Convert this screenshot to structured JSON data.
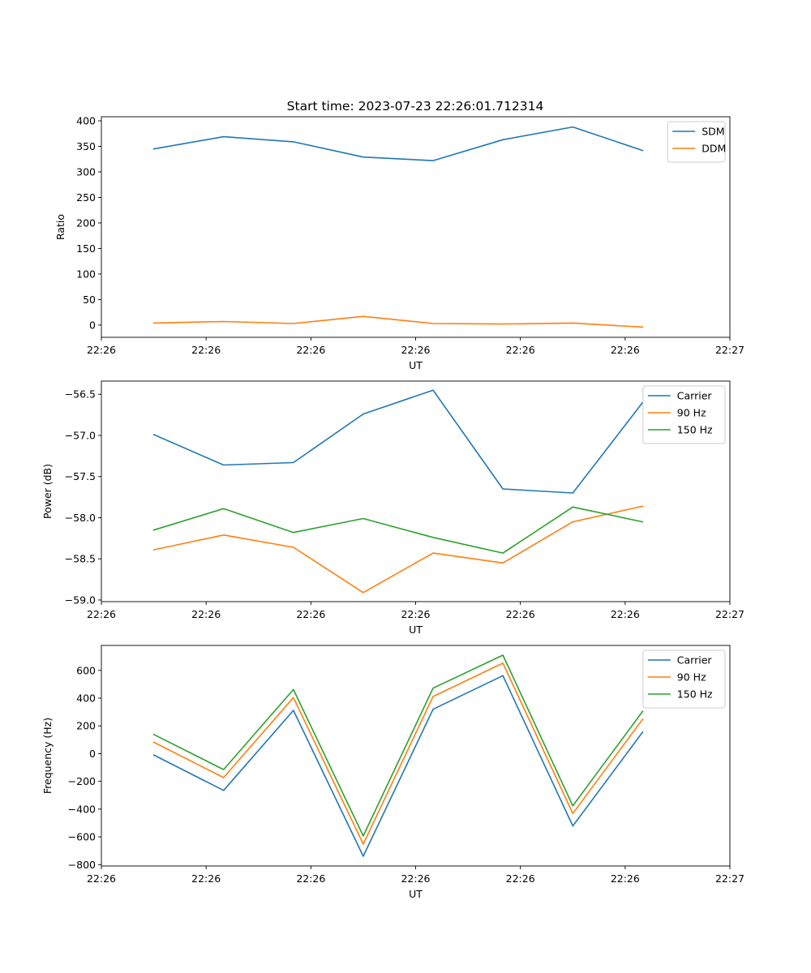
{
  "figure": {
    "title": "Start time: 2023-07-23 22:26:01.712314"
  },
  "chart_data": [
    {
      "type": "line",
      "xlabel": "UT",
      "ylabel": "Ratio",
      "x": [
        1,
        2,
        3,
        4,
        5,
        6,
        7,
        8
      ],
      "xlim": [
        0.25,
        9.25
      ],
      "x_ticks": [
        {
          "v": 0.25,
          "label": "22:26"
        },
        {
          "v": 1.75,
          "label": "22:26"
        },
        {
          "v": 3.25,
          "label": "22:26"
        },
        {
          "v": 4.75,
          "label": "22:26"
        },
        {
          "v": 6.25,
          "label": "22:26"
        },
        {
          "v": 7.75,
          "label": "22:26"
        },
        {
          "v": 9.25,
          "label": "22:27"
        }
      ],
      "ylim": [
        -24,
        408
      ],
      "y_ticks": [
        {
          "v": 0,
          "label": "0"
        },
        {
          "v": 50,
          "label": "50"
        },
        {
          "v": 100,
          "label": "100"
        },
        {
          "v": 150,
          "label": "150"
        },
        {
          "v": 200,
          "label": "200"
        },
        {
          "v": 250,
          "label": "250"
        },
        {
          "v": 300,
          "label": "300"
        },
        {
          "v": 350,
          "label": "350"
        },
        {
          "v": 400,
          "label": "400"
        }
      ],
      "series": [
        {
          "name": "SDM",
          "color": "#1f77b4",
          "values": [
            345,
            369,
            359,
            329,
            322,
            363,
            388,
            342
          ]
        },
        {
          "name": "DDM",
          "color": "#ff7f0e",
          "values": [
            4,
            7,
            3,
            17,
            3,
            2,
            4,
            -4
          ]
        }
      ],
      "legend": "top-right"
    },
    {
      "type": "line",
      "xlabel": "UT",
      "ylabel": "Power (dB)",
      "x": [
        1,
        2,
        3,
        4,
        5,
        6,
        7,
        8
      ],
      "xlim": [
        0.25,
        9.25
      ],
      "x_ticks": [
        {
          "v": 0.25,
          "label": "22:26"
        },
        {
          "v": 1.75,
          "label": "22:26"
        },
        {
          "v": 3.25,
          "label": "22:26"
        },
        {
          "v": 4.75,
          "label": "22:26"
        },
        {
          "v": 6.25,
          "label": "22:26"
        },
        {
          "v": 7.75,
          "label": "22:26"
        },
        {
          "v": 9.25,
          "label": "22:27"
        }
      ],
      "ylim": [
        -59.02,
        -56.34
      ],
      "y_ticks": [
        {
          "v": -59.0,
          "label": "−59.0"
        },
        {
          "v": -58.5,
          "label": "−58.5"
        },
        {
          "v": -58.0,
          "label": "−58.0"
        },
        {
          "v": -57.5,
          "label": "−57.5"
        },
        {
          "v": -57.0,
          "label": "−57.0"
        },
        {
          "v": -56.5,
          "label": "−56.5"
        }
      ],
      "series": [
        {
          "name": "Carrier",
          "color": "#1f77b4",
          "values": [
            -56.99,
            -57.36,
            -57.33,
            -56.74,
            -56.45,
            -57.65,
            -57.7,
            -56.6
          ]
        },
        {
          "name": "90 Hz",
          "color": "#ff7f0e",
          "values": [
            -58.39,
            -58.21,
            -58.36,
            -58.91,
            -58.43,
            -58.55,
            -58.05,
            -57.86
          ]
        },
        {
          "name": "150 Hz",
          "color": "#2ca02c",
          "values": [
            -58.15,
            -57.89,
            -58.18,
            -58.01,
            -58.24,
            -58.43,
            -57.87,
            -58.05
          ]
        }
      ],
      "legend": "top-right"
    },
    {
      "type": "line",
      "xlabel": "UT",
      "ylabel": "Frequency (Hz)",
      "x": [
        1,
        2,
        3,
        4,
        5,
        6,
        7,
        8
      ],
      "xlim": [
        0.25,
        9.25
      ],
      "x_ticks": [
        {
          "v": 0.25,
          "label": "22:26"
        },
        {
          "v": 1.75,
          "label": "22:26"
        },
        {
          "v": 3.25,
          "label": "22:26"
        },
        {
          "v": 4.75,
          "label": "22:26"
        },
        {
          "v": 6.25,
          "label": "22:26"
        },
        {
          "v": 7.75,
          "label": "22:26"
        },
        {
          "v": 9.25,
          "label": "22:27"
        }
      ],
      "ylim": [
        -810,
        780
      ],
      "y_ticks": [
        {
          "v": -800,
          "label": "−800"
        },
        {
          "v": -600,
          "label": "−600"
        },
        {
          "v": -400,
          "label": "−400"
        },
        {
          "v": -200,
          "label": "−200"
        },
        {
          "v": 0,
          "label": "0"
        },
        {
          "v": 200,
          "label": "200"
        },
        {
          "v": 400,
          "label": "400"
        },
        {
          "v": 600,
          "label": "600"
        }
      ],
      "series": [
        {
          "name": "Carrier",
          "color": "#1f77b4",
          "values": [
            -10,
            -265,
            312,
            -740,
            320,
            562,
            -522,
            155
          ]
        },
        {
          "name": "90 Hz",
          "color": "#ff7f0e",
          "values": [
            82,
            -173,
            404,
            -652,
            412,
            652,
            -432,
            248
          ]
        },
        {
          "name": "150 Hz",
          "color": "#2ca02c",
          "values": [
            138,
            -115,
            462,
            -594,
            472,
            710,
            -376,
            305
          ]
        }
      ],
      "legend": "top-right"
    }
  ]
}
